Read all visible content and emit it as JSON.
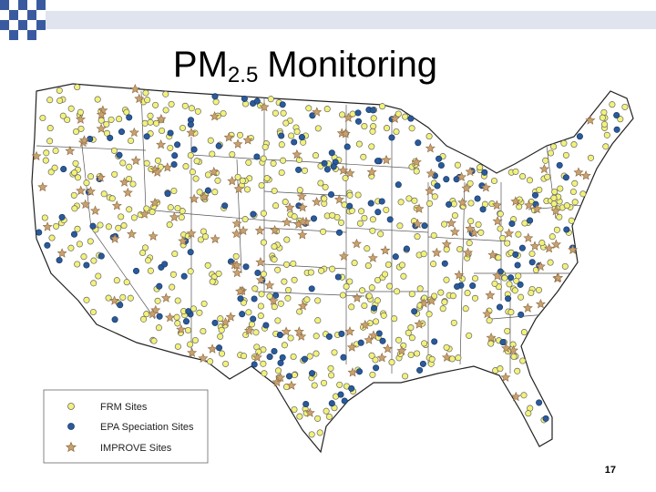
{
  "title": {
    "prefix": "PM",
    "subscript": "2.5",
    "suffix": "Monitoring"
  },
  "legend": [
    "FRM Sites",
    "EPA Speciation Sites",
    "IMPROVE Sites"
  ],
  "page_number": "17"
}
